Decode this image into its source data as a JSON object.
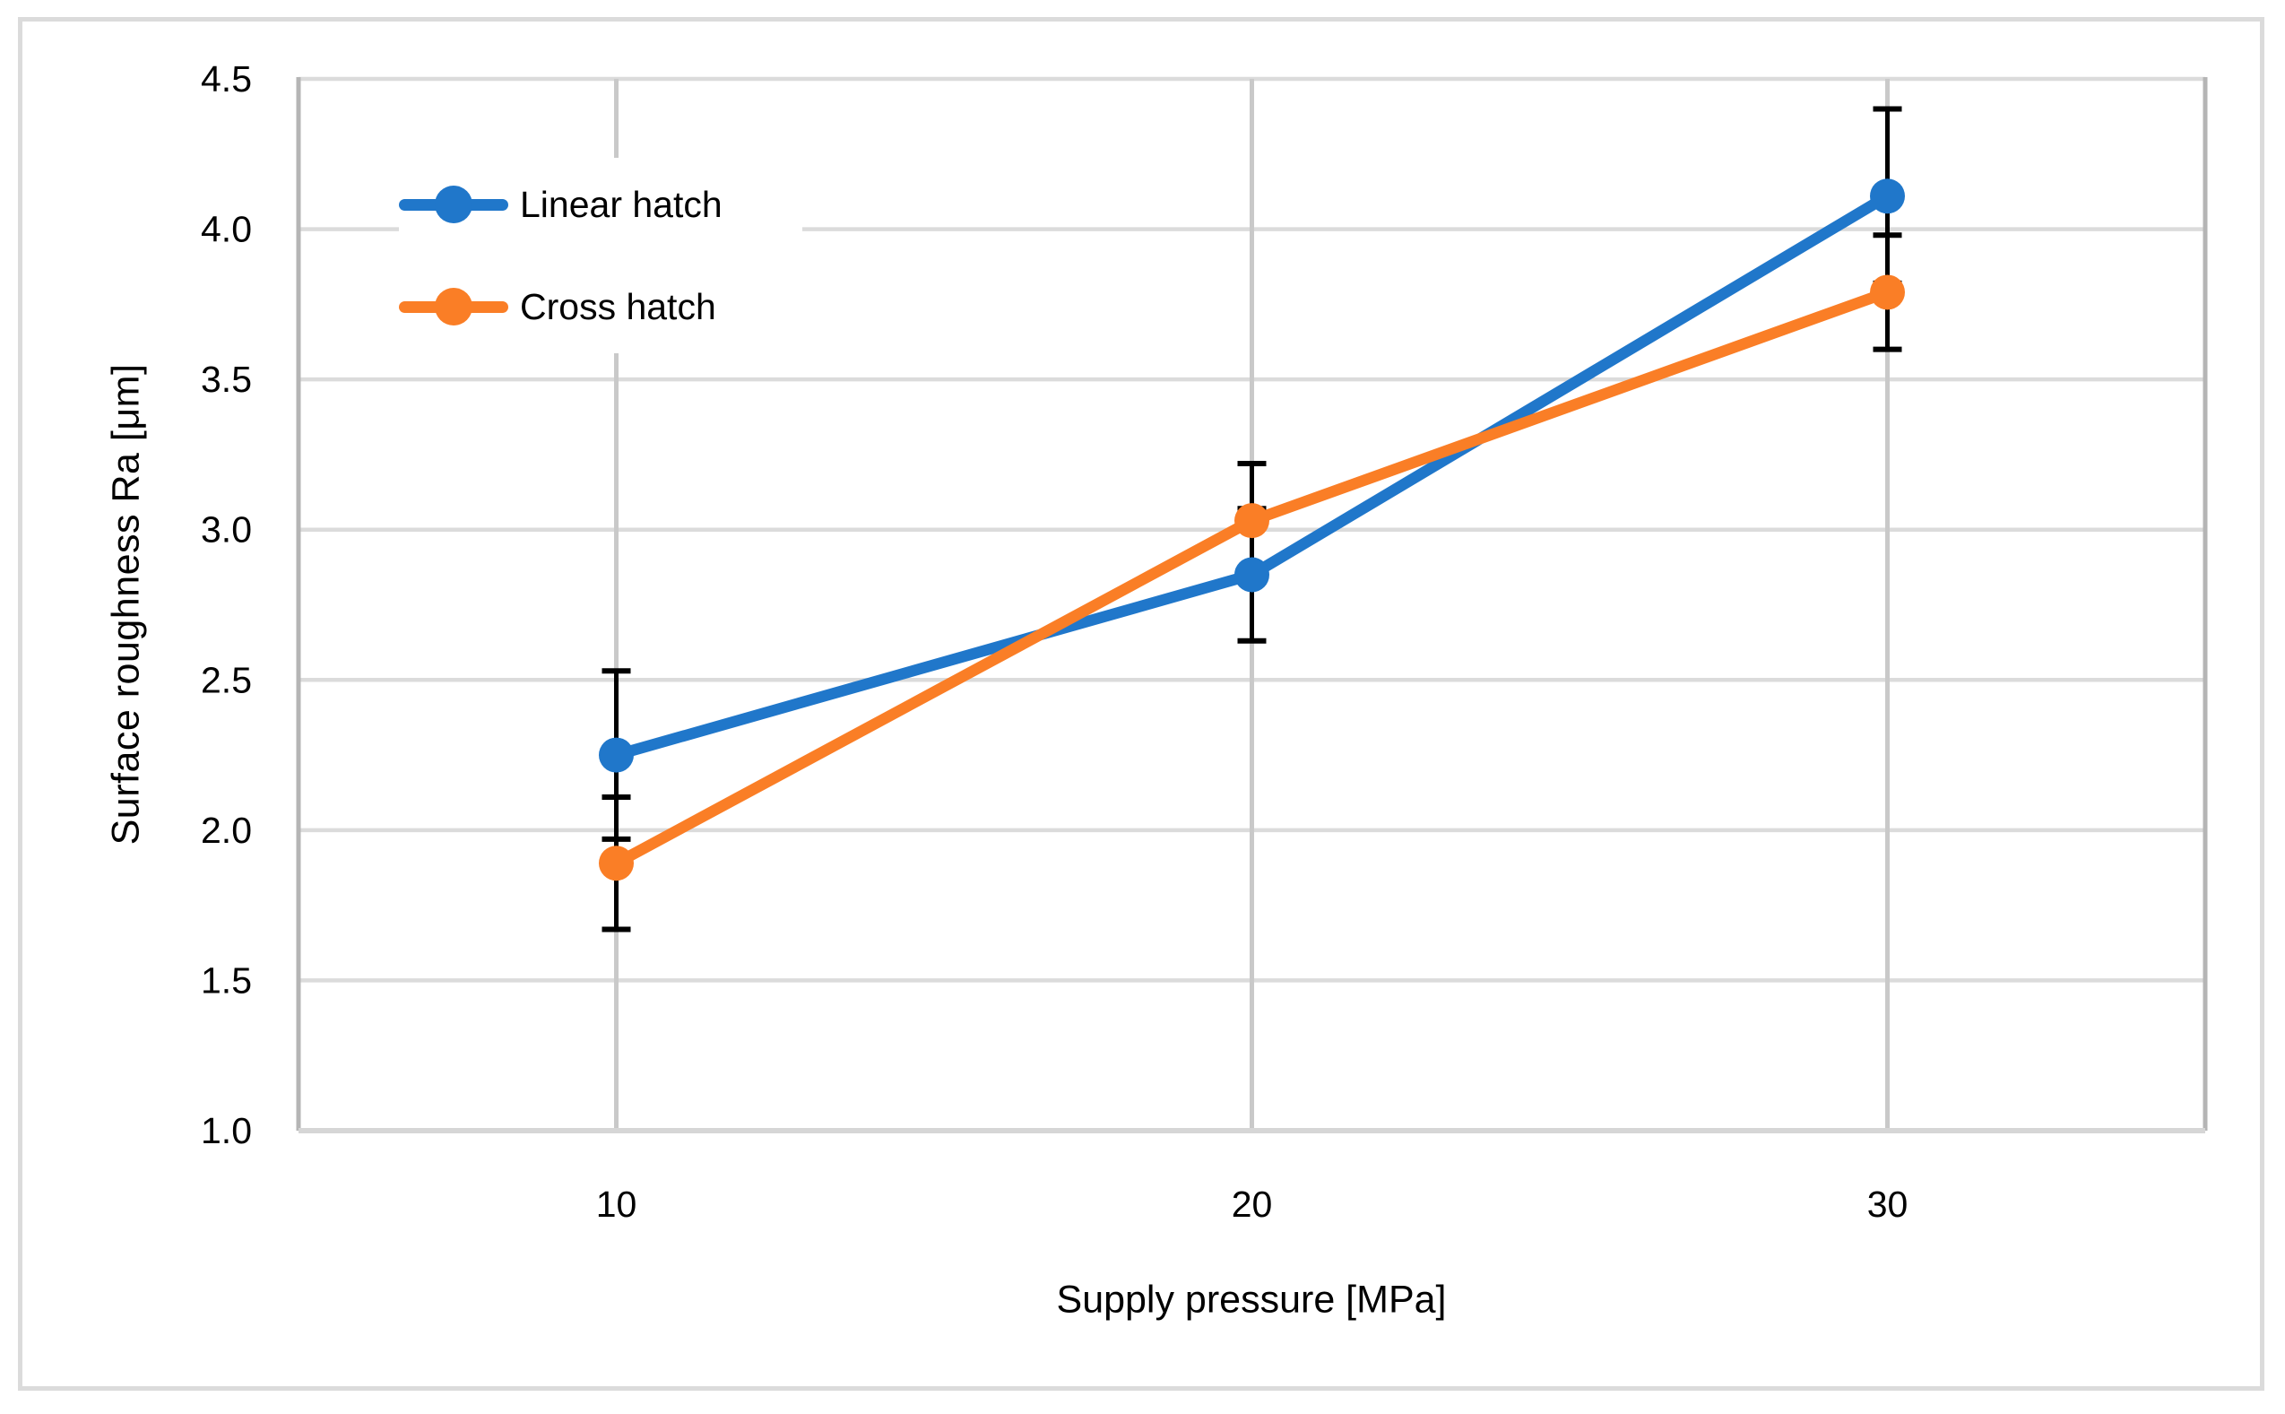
{
  "chart_data": {
    "type": "line",
    "title": "",
    "xlabel": "Supply pressure [MPa]",
    "ylabel": "Surface roughness Ra [μm]",
    "categories": [
      "10",
      "20",
      "30"
    ],
    "x_values": [
      10,
      20,
      30
    ],
    "ylim": [
      1.0,
      4.5
    ],
    "yticks": [
      1.0,
      1.5,
      2.0,
      2.5,
      3.0,
      3.5,
      4.0,
      4.5
    ],
    "ytick_labels": [
      "1.0",
      "1.5",
      "2.0",
      "2.5",
      "3.0",
      "3.5",
      "4.0",
      "4.5"
    ],
    "grid": true,
    "legend_position": "inside top-left",
    "error_bars": true,
    "error_bar_color": "#000000",
    "series": [
      {
        "name": "Linear hatch",
        "color": "#2077CA",
        "values": [
          2.25,
          2.85,
          4.11
        ],
        "errors": [
          0.28,
          0.22,
          0.29
        ]
      },
      {
        "name": "Cross hatch",
        "color": "#FA7E26",
        "values": [
          1.89,
          3.03,
          3.79
        ],
        "errors": [
          0.22,
          0.19,
          0.19
        ]
      }
    ],
    "colors": {
      "h_gridline": "#DBDBDB",
      "v_gridline": "#C9C9C9",
      "axis_line": "#B5B5B5",
      "bottom_axis_line": "#D6D6D6",
      "frame_border": "#DBDBDB",
      "text": "#000000"
    }
  }
}
